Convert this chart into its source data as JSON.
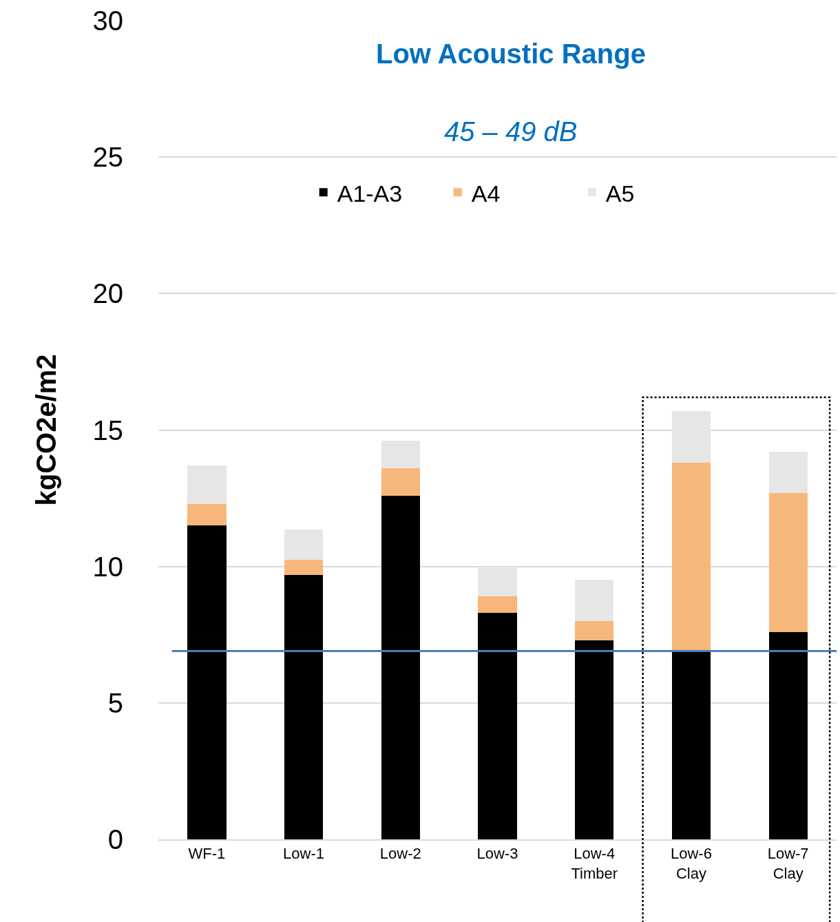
{
  "chart_data": {
    "type": "bar",
    "title": "Low Acoustic Range",
    "subtitle": "45 – 49 dB",
    "ylabel": "kgCO2e/m2",
    "categories": [
      "WF-1",
      "Low-1",
      "Low-2",
      "Low-3",
      "Low-4\nTimber",
      "Low-6\nClay",
      "Low-7\nClay"
    ],
    "stacked": true,
    "series": [
      {
        "name": "A1-A3",
        "color": "#000000",
        "values": [
          11.5,
          9.7,
          12.6,
          8.3,
          7.3,
          6.9,
          7.6
        ]
      },
      {
        "name": "A4",
        "color": "#f8b77a",
        "values": [
          0.8,
          0.55,
          1.0,
          0.6,
          0.7,
          6.9,
          5.1
        ]
      },
      {
        "name": "A5",
        "color": "#e6e6e6",
        "values": [
          1.4,
          1.1,
          1.0,
          1.1,
          1.5,
          1.9,
          1.5
        ]
      }
    ],
    "ylim": [
      0,
      30
    ],
    "yticks": [
      0,
      5,
      10,
      15,
      20,
      25,
      30
    ],
    "grid": "y",
    "legend": "top",
    "ref_lines": [
      {
        "axis": "y",
        "value": 6.9,
        "color": "#4a7ebb"
      }
    ]
  }
}
